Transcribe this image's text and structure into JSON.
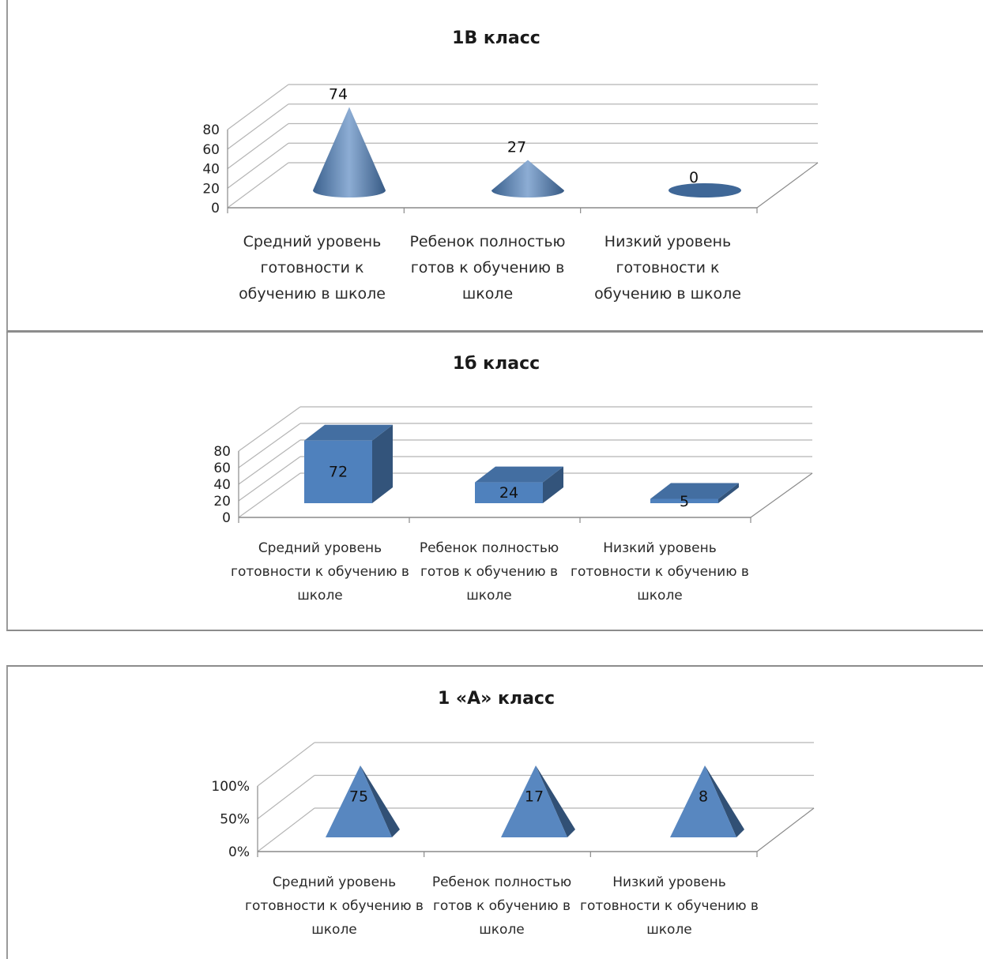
{
  "chart_data": [
    {
      "type": "bar",
      "shape": "cone",
      "title": "1В класс",
      "categories": [
        "Средний уровень готовности к обучению в школе",
        "Ребенок полностью готов к обучению в школе",
        "Низкий  уровень готовности к обучению в школе"
      ],
      "values": [
        74,
        27,
        0
      ],
      "yticks": [
        "0",
        "20",
        "40",
        "60",
        "80"
      ],
      "ylim": [
        0,
        80
      ],
      "grid": true,
      "color": "#4f81bd"
    },
    {
      "type": "bar",
      "shape": "box",
      "title": "1б класс",
      "categories": [
        "Средний уровень готовности к обучению в школе",
        "Ребенок полностью готов к обучению в школе",
        "Низкий  уровень готовности к обучению в школе"
      ],
      "values": [
        72,
        24,
        5
      ],
      "yticks": [
        "0",
        "20",
        "40",
        "60",
        "80"
      ],
      "ylim": [
        0,
        80
      ],
      "grid": true,
      "color": "#4f81bd"
    },
    {
      "type": "bar",
      "shape": "pyramid",
      "stacked": "100%",
      "title": "1  «А»  класс",
      "categories": [
        "Средний уровень готовности к обучению в школе",
        "Ребенок полностью готов к обучению в школе",
        "Низкий  уровень готовности к обучению в школе"
      ],
      "values": [
        75,
        17,
        8
      ],
      "yticks": [
        "0%",
        "50%",
        "100%"
      ],
      "ylim": [
        0,
        100
      ],
      "grid": true,
      "color": "#4f81bd"
    }
  ]
}
